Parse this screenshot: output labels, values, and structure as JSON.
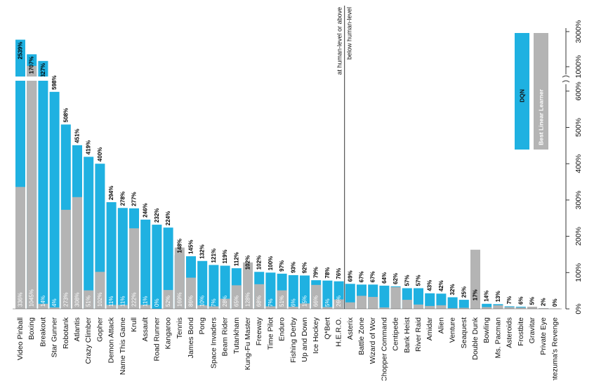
{
  "chart_data": {
    "type": "bar",
    "categories": [
      "Video Pinball",
      "Boxing",
      "Breakout",
      "Star Gunner",
      "Robotank",
      "Atlantis",
      "Crazy Climber",
      "Gopher",
      "Demon Attack",
      "Name This Game",
      "Krull",
      "Assault",
      "Road Runner",
      "Kangaroo",
      "Tennis",
      "James Bond",
      "Pong",
      "Space Invaders",
      "Beam Rider",
      "Tutankham",
      "Kung-Fu Master",
      "Freeway",
      "Time Pilot",
      "Enduro",
      "Fishing Derby",
      "Up and Down",
      "Ice Hockey",
      "Q*Bert",
      "H.E.R.O.",
      "Asterix",
      "Battle Zone",
      "Wizard of Wor",
      "Chopper Command",
      "Centipede",
      "Bank Heist",
      "River Raid",
      "Amidar",
      "Alien",
      "Venture",
      "Seaquest",
      "Double Dunk",
      "Bowling",
      "Ms. Pacman",
      "Asteroids",
      "Frostbite",
      "Gravitar",
      "Private Eye",
      "Montezuma's Revenge"
    ],
    "series": [
      {
        "name": "DQN",
        "color": "#1fb1e1",
        "values": [
          2539,
          1707,
          1327,
          598,
          508,
          451,
          419,
          400,
          294,
          278,
          277,
          246,
          232,
          224,
          148,
          145,
          132,
          121,
          119,
          112,
          102,
          102,
          100,
          97,
          93,
          92,
          79,
          78,
          76,
          69,
          67,
          67,
          64,
          62,
          57,
          57,
          43,
          42,
          32,
          25,
          17,
          14,
          13,
          7,
          6,
          5,
          2,
          0
        ],
        "value_labels": [
          "2539%",
          "1707%",
          "1327%",
          "598%",
          "508%",
          "451%",
          "419%",
          "400%",
          "294%",
          "278%",
          "277%",
          "246%",
          "232%",
          "224%",
          "148%",
          "145%",
          "132%",
          "121%",
          "119%",
          "112%",
          "102%",
          "102%",
          "100%",
          "97%",
          "93%",
          "92%",
          "79%",
          "78%",
          "76%",
          "69%",
          "67%",
          "67%",
          "64%",
          "62%",
          "57%",
          "57%",
          "43%",
          "42%",
          "32%",
          "25%",
          "17%",
          "14%",
          "13%",
          "7%",
          "6%",
          "5%",
          "2%",
          "0%"
        ]
      },
      {
        "name": "Best Linear Learner",
        "color": "#b4b4b4",
        "values": [
          336,
          1045,
          14,
          4,
          273,
          308,
          51,
          102,
          11,
          11,
          222,
          11,
          0,
          52,
          169,
          86,
          10,
          7,
          28,
          65,
          128,
          68,
          7,
          51,
          6,
          15,
          66,
          5,
          26,
          18,
          36,
          33,
          4,
          60,
          25,
          12,
          8,
          10,
          2,
          3,
          163,
          5,
          10,
          5,
          4,
          6,
          2,
          1
        ],
        "value_labels": [
          "336%",
          "1045%",
          "14%",
          "4%",
          "273%",
          "308%",
          "51%",
          "102%",
          "11%",
          "11%",
          "222%",
          "11%",
          "0%",
          "52%",
          "169%",
          "86%",
          "10%",
          "7%",
          "28%",
          "65%",
          "128%",
          "68%",
          "7%",
          "51%",
          "6%",
          "15%",
          "66%",
          "5%",
          "26%",
          null,
          null,
          null,
          null,
          null,
          null,
          null,
          null,
          null,
          null,
          null,
          null,
          null,
          null,
          null,
          null,
          null,
          null,
          null
        ]
      }
    ],
    "ylim": [
      0,
      3000
    ],
    "y_break": [
      650,
      900
    ],
    "yticks": [
      {
        "value": 0,
        "label": "0%"
      },
      {
        "value": 100,
        "label": "100%"
      },
      {
        "value": 200,
        "label": "200%"
      },
      {
        "value": 300,
        "label": "300%"
      },
      {
        "value": 400,
        "label": "400%"
      },
      {
        "value": 500,
        "label": "500%"
      },
      {
        "value": 600,
        "label": "600%"
      },
      {
        "value": 1000,
        "label": "1000%"
      },
      {
        "value": 3000,
        "label": "3000%"
      }
    ],
    "annotations": [
      "at human-level or above",
      "below human-level"
    ],
    "legend": "top-right"
  }
}
